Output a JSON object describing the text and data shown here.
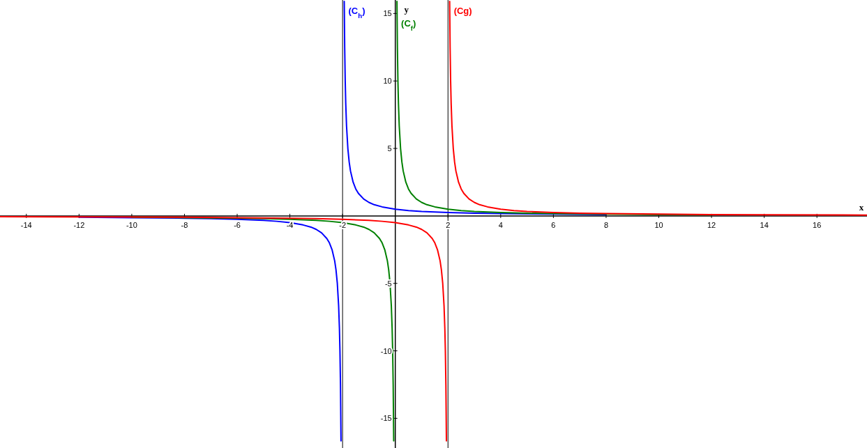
{
  "chart_data": {
    "type": "line",
    "xlabel": "x",
    "ylabel": "y",
    "xlim": [
      -15,
      17.9
    ],
    "ylim": [
      -17.2,
      16
    ],
    "xticks": [
      -14,
      -12,
      -10,
      -8,
      -6,
      -4,
      -2,
      2,
      4,
      6,
      8,
      10,
      12,
      14,
      16
    ],
    "yticks": [
      -15,
      -10,
      -5,
      5,
      10,
      15
    ],
    "grid": false,
    "legend": false,
    "marker": "none",
    "line_style": "solid",
    "ref_lines": [
      {
        "axis": "x",
        "value": -2,
        "color": "#000000"
      },
      {
        "axis": "x",
        "value": 2,
        "color": "#000000"
      }
    ],
    "series": [
      {
        "name": "(C$_{h}$)",
        "color": "#0000ff",
        "x": [
          -12,
          -10,
          -8,
          -7,
          -6,
          -5,
          -4.5,
          -4,
          -3.5,
          -3.2,
          -3,
          -2.8,
          -2.6,
          -2.5,
          -2.4,
          -2.3,
          -2.25,
          -2.2,
          -2.15,
          -2.12,
          -2.1,
          -2.08,
          -2.06,
          -2,
          -1.937,
          -1.92,
          -1.9,
          -1.88,
          -1.85,
          -1.8,
          -1.75,
          -1.7,
          -1.6,
          -1.5,
          -1.4,
          -1.2,
          -1,
          -0.8,
          -0.5,
          0,
          0.5,
          1,
          2,
          3,
          4,
          6,
          8
        ],
        "values": [
          -0.1,
          -0.13,
          -0.17,
          -0.2,
          -0.25,
          -0.33,
          -0.4,
          -0.5,
          -0.67,
          -0.83,
          -1,
          -1.25,
          -1.67,
          -2,
          -2.5,
          -3.33,
          -4,
          -5,
          -6.67,
          -8.33,
          -10,
          -12.5,
          -16.67,
          null,
          15.9,
          12.5,
          10,
          8.33,
          6.67,
          5,
          4,
          3.33,
          2.5,
          2,
          1.67,
          1.25,
          1,
          0.83,
          0.67,
          0.5,
          0.4,
          0.33,
          0.25,
          0.2,
          0.17,
          0.13,
          0.1
        ]
      },
      {
        "name": "(C$_{f}$)",
        "color": "#008000",
        "x": [
          -10,
          -8,
          -6,
          -5,
          -4,
          -3,
          -2.5,
          -2,
          -1.5,
          -1.2,
          -1,
          -0.8,
          -0.6,
          -0.5,
          -0.4,
          -0.3,
          -0.25,
          -0.2,
          -0.15,
          -0.12,
          -0.1,
          -0.08,
          -0.06,
          0,
          0.063,
          0.08,
          0.1,
          0.12,
          0.15,
          0.2,
          0.25,
          0.3,
          0.4,
          0.5,
          0.6,
          0.8,
          1,
          1.2,
          1.5,
          2,
          2.5,
          3,
          4,
          5,
          6,
          8,
          10,
          12
        ],
        "values": [
          -0.1,
          -0.13,
          -0.17,
          -0.2,
          -0.25,
          -0.33,
          -0.4,
          -0.5,
          -0.67,
          -0.83,
          -1,
          -1.25,
          -1.67,
          -2,
          -2.5,
          -3.33,
          -4,
          -5,
          -6.67,
          -8.33,
          -10,
          -12.5,
          -16.67,
          null,
          15.9,
          12.5,
          10,
          8.33,
          6.67,
          5,
          4,
          3.33,
          2.5,
          2,
          1.67,
          1.25,
          1,
          0.83,
          0.67,
          0.5,
          0.4,
          0.33,
          0.25,
          0.2,
          0.17,
          0.13,
          0.1,
          0.08
        ]
      },
      {
        "name": "(Cg)",
        "color": "#ff0000",
        "x": [
          -15,
          -13,
          -10,
          -8,
          -6,
          -4,
          -3,
          -2,
          -1,
          -0.5,
          0,
          0.5,
          0.8,
          1,
          1.2,
          1.4,
          1.5,
          1.6,
          1.7,
          1.75,
          1.8,
          1.85,
          1.88,
          1.9,
          1.92,
          1.94,
          2,
          2.063,
          2.08,
          2.1,
          2.12,
          2.15,
          2.2,
          2.25,
          2.3,
          2.4,
          2.5,
          2.6,
          2.8,
          3,
          3.2,
          3.5,
          4,
          4.5,
          5,
          6,
          7,
          8,
          10,
          12,
          14,
          17,
          17.9
        ],
        "values": [
          -0.06,
          -0.07,
          -0.08,
          -0.1,
          -0.13,
          -0.17,
          -0.2,
          -0.25,
          -0.33,
          -0.4,
          -0.5,
          -0.67,
          -0.83,
          -1,
          -1.25,
          -1.67,
          -2,
          -2.5,
          -3.33,
          -4,
          -5,
          -6.67,
          -8.33,
          -10,
          -12.5,
          -16.67,
          null,
          15.9,
          12.5,
          10,
          8.33,
          6.67,
          5,
          4,
          3.33,
          2.5,
          2,
          1.67,
          1.25,
          1,
          0.83,
          0.67,
          0.5,
          0.4,
          0.33,
          0.25,
          0.2,
          0.17,
          0.13,
          0.1,
          0.08,
          0.07,
          0.06
        ]
      }
    ]
  }
}
